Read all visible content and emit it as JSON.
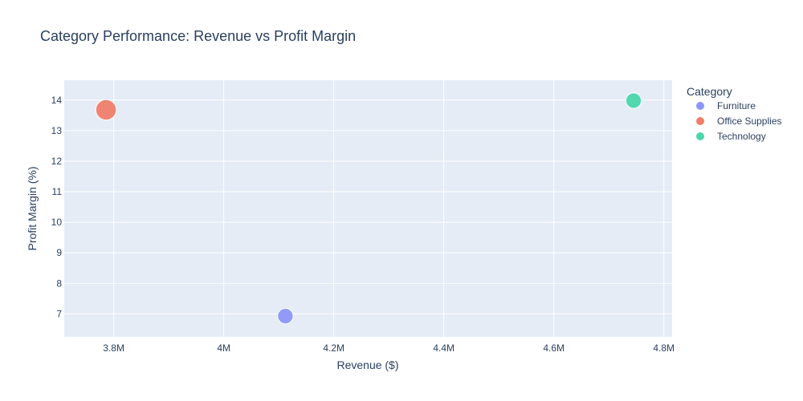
{
  "chart_data": {
    "type": "scatter",
    "title": "Category Performance: Revenue vs Profit Margin",
    "xlabel": "Revenue ($)",
    "ylabel": "Profit Margin (%)",
    "xlim": [
      3710000,
      4815000
    ],
    "ylim": [
      6.25,
      14.65
    ],
    "x_ticks": [
      {
        "value": 3800000,
        "label": "3.8M"
      },
      {
        "value": 4000000,
        "label": "4M"
      },
      {
        "value": 4200000,
        "label": "4.2M"
      },
      {
        "value": 4400000,
        "label": "4.4M"
      },
      {
        "value": 4600000,
        "label": "4.6M"
      },
      {
        "value": 4800000,
        "label": "4.8M"
      }
    ],
    "y_ticks": [
      {
        "value": 7,
        "label": "7"
      },
      {
        "value": 8,
        "label": "8"
      },
      {
        "value": 9,
        "label": "9"
      },
      {
        "value": 10,
        "label": "10"
      },
      {
        "value": 11,
        "label": "11"
      },
      {
        "value": 12,
        "label": "12"
      },
      {
        "value": 13,
        "label": "13"
      },
      {
        "value": 14,
        "label": "14"
      }
    ],
    "grid": true,
    "legend": {
      "title": "Category",
      "placement": "right"
    },
    "series": [
      {
        "name": "Furniture",
        "color": "#8c96f7",
        "points": [
          {
            "x": 4112000,
            "y": 6.93,
            "size": 2.0
          }
        ]
      },
      {
        "name": "Office Supplies",
        "color": "#ef7e6b",
        "points": [
          {
            "x": 3786000,
            "y": 13.68,
            "size": 3.5
          }
        ]
      },
      {
        "name": "Technology",
        "color": "#4bd6ab",
        "points": [
          {
            "x": 4745000,
            "y": 13.98,
            "size": 2.0
          }
        ]
      }
    ]
  }
}
